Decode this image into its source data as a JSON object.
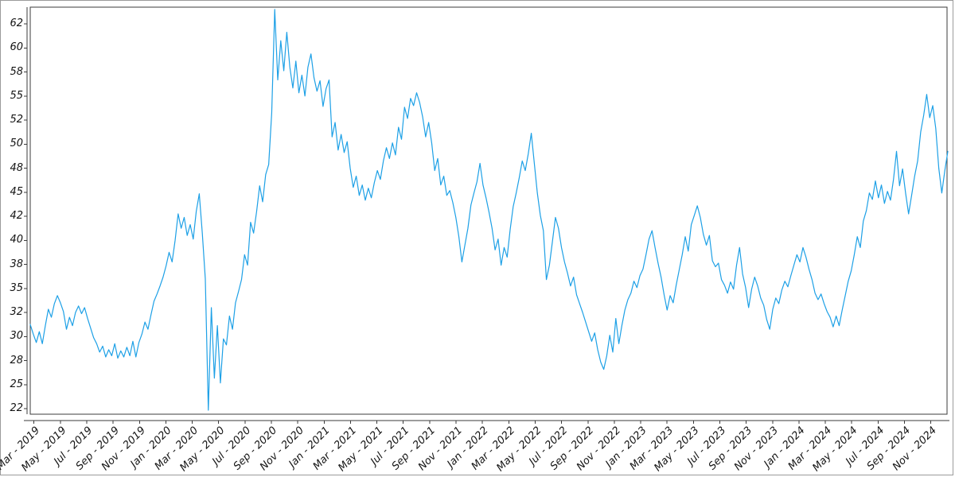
{
  "chart_data": {
    "type": "line",
    "title": "",
    "xlabel": "",
    "ylabel": "",
    "grid": false,
    "legend_position": "none",
    "x_tick_labels": [
      "Mar - 2019",
      "May - 2019",
      "Jul - 2019",
      "Sep - 2019",
      "Nov - 2019",
      "Jan - 2020",
      "Mar - 2020",
      "May - 2020",
      "Jul - 2020",
      "Sep - 2020",
      "Nov - 2020",
      "Jan - 2021",
      "Mar - 2021",
      "May - 2021",
      "Jul - 2021",
      "Sep - 2021",
      "Nov - 2021",
      "Jan - 2022",
      "Mar - 2022",
      "May - 2022",
      "Jul - 2022",
      "Sep - 2022",
      "Nov - 2022",
      "Jan - 2023",
      "Mar - 2023",
      "May - 2023",
      "Jul - 2023",
      "Sep - 2023",
      "Nov - 2023",
      "Jan - 2024",
      "Mar - 2024",
      "May - 2024",
      "Jul - 2024",
      "Sep - 2024",
      "Nov - 2024"
    ],
    "y_tick_values": [
      62,
      60,
      58,
      55,
      52,
      50,
      48,
      45,
      42,
      40,
      38,
      35,
      32,
      30,
      28,
      25,
      22
    ],
    "ylim_display": [
      22,
      62
    ],
    "x_range": [
      "Mar - 2019",
      "Nov - 2024"
    ],
    "series": [
      {
        "name": "series-1",
        "values": [
          31.0,
          30.2,
          29.5,
          30.4,
          29.4,
          30.9,
          32.4,
          31.6,
          33.1,
          34.1,
          33.2,
          32.1,
          30.6,
          31.6,
          30.9,
          32.0,
          32.8,
          31.9,
          32.6,
          31.5,
          30.7,
          29.9,
          29.4,
          28.7,
          29.2,
          28.3,
          28.9,
          28.4,
          29.4,
          28.2,
          28.8,
          28.3,
          29.1,
          28.4,
          29.6,
          28.3,
          29.5,
          30.2,
          31.2,
          30.6,
          31.8,
          33.4,
          34.3,
          35.3,
          36.4,
          37.8,
          39.0,
          38.2,
          40.0,
          42.3,
          41.0,
          41.9,
          40.4,
          41.3,
          40.1,
          42.6,
          44.8,
          40.6,
          36.2,
          21.8,
          32.6,
          25.8,
          30.9,
          25.2,
          29.8,
          29.3,
          31.7,
          30.6,
          33.2,
          34.6,
          36.1,
          38.8,
          37.9,
          41.5,
          40.6,
          42.6,
          45.8,
          43.8,
          47.2,
          48.3,
          52.9,
          63.2,
          57.0,
          60.6,
          58.1,
          61.3,
          58.4,
          56.0,
          58.9,
          55.4,
          57.6,
          55.0,
          58.4,
          59.5,
          57.3,
          55.6,
          56.9,
          53.7,
          55.9,
          57.0,
          50.6,
          51.8,
          49.5,
          50.8,
          49.3,
          50.2,
          48.0,
          45.6,
          47.0,
          44.6,
          45.9,
          44.0,
          45.5,
          44.3,
          46.2,
          47.7,
          46.6,
          48.6,
          49.7,
          48.8,
          50.1,
          49.1,
          51.4,
          50.4,
          53.6,
          52.2,
          54.7,
          53.8,
          55.4,
          54.2,
          52.4,
          50.6,
          51.8,
          50.1,
          47.7,
          48.8,
          45.9,
          47.0,
          44.6,
          45.2,
          43.7,
          41.9,
          40.3,
          38.2,
          39.6,
          41.0,
          43.4,
          44.9,
          46.3,
          48.4,
          45.9,
          44.3,
          42.5,
          41.0,
          39.2,
          40.1,
          37.9,
          39.4,
          38.6,
          40.9,
          43.2,
          44.9,
          46.8,
          48.6,
          47.7,
          49.2,
          50.9,
          48.4,
          44.9,
          42.1,
          40.8,
          36.1,
          37.9,
          39.9,
          41.9,
          41.0,
          39.4,
          38.2,
          36.9,
          35.3,
          36.4,
          34.2,
          33.1,
          32.0,
          31.2,
          30.4,
          29.6,
          30.3,
          28.9,
          27.8,
          26.9,
          28.4,
          30.1,
          28.7,
          31.5,
          29.4,
          30.9,
          32.3,
          33.6,
          34.4,
          35.9,
          35.1,
          36.6,
          37.4,
          38.8,
          40.1,
          40.8,
          39.4,
          38.1,
          36.4,
          34.2,
          32.3,
          34.1,
          33.2,
          35.4,
          37.3,
          38.8,
          40.3,
          39.1,
          41.3,
          42.1,
          43.3,
          41.9,
          40.5,
          39.6,
          40.4,
          38.3,
          37.7,
          38.1,
          36.1,
          35.4,
          34.4,
          35.8,
          34.9,
          37.9,
          39.4,
          36.8,
          35.1,
          32.6,
          34.9,
          36.4,
          35.3,
          33.8,
          32.9,
          31.4,
          30.6,
          32.4,
          33.8,
          33.1,
          34.8,
          35.9,
          35.2,
          36.6,
          37.9,
          38.8,
          38.2,
          39.4,
          38.6,
          37.4,
          36.1,
          34.4,
          33.6,
          34.3,
          33.1,
          32.1,
          31.6,
          30.8,
          31.7,
          30.9,
          32.3,
          34.1,
          35.9,
          37.2,
          38.8,
          40.3,
          39.4,
          41.6,
          42.7,
          44.9,
          44.1,
          46.4,
          44.3,
          45.9,
          43.6,
          45.1,
          44.0,
          46.6,
          49.4,
          45.8,
          47.9,
          44.9,
          42.3,
          44.6,
          47.0,
          48.6,
          51.0,
          52.6,
          55.2,
          52.3,
          53.8,
          51.3,
          48.0,
          44.9,
          47.7,
          49.4
        ]
      }
    ],
    "colors": {
      "line": "#1da0e6",
      "axis": "#3b3b3b",
      "tick_label": "#141414",
      "background": "#ffffff",
      "outer_border": "#9b9b9b"
    }
  }
}
